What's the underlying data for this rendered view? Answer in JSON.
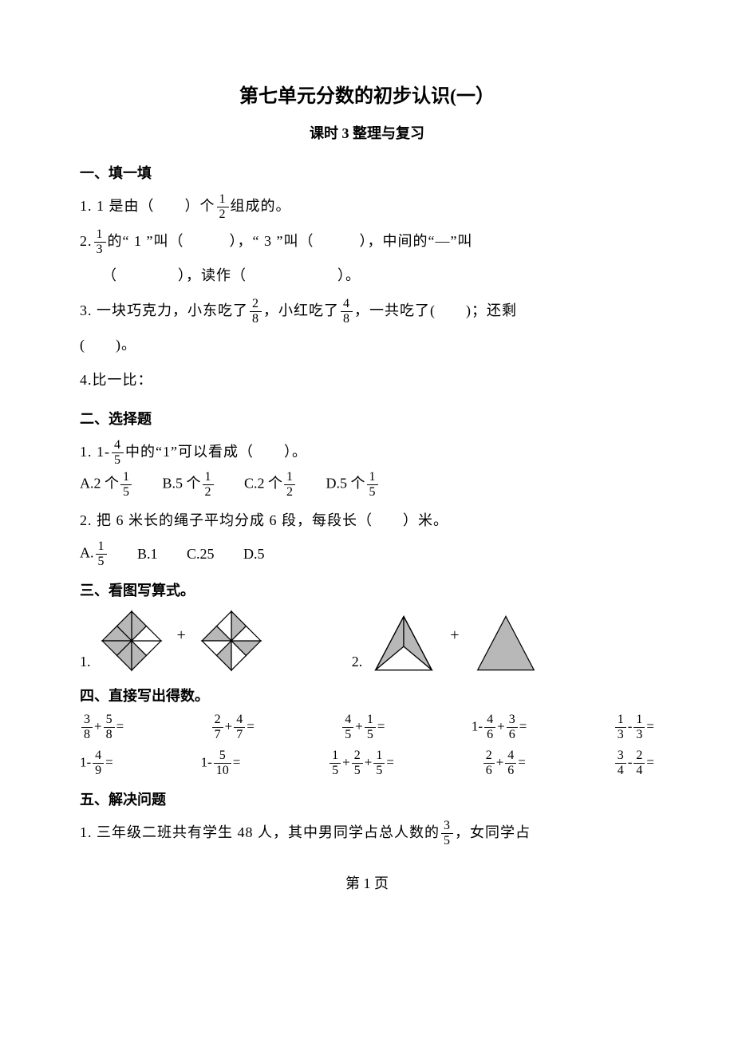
{
  "title": "第七单元分数的初步认识(一）",
  "subtitle": "课时 3  整理与复习",
  "section1": {
    "heading": "一、填一填",
    "q1_prefix": "1.  1 是由（　　）个",
    "q1_frac": {
      "num": "1",
      "den": "2"
    },
    "q1_suffix": "组成的。",
    "q2_prefix": "2.",
    "q2_frac": {
      "num": "1",
      "den": "3"
    },
    "q2_mid": "的“ 1 ”叫（　　　），“ 3 ”叫（　　　），中间的“—”叫",
    "q2_line2": "（　　　　），读作（　　　　　　）。",
    "q3_prefix": "3. 一块巧克力，小东吃了",
    "q3_frac1": {
      "num": "2",
      "den": "8"
    },
    "q3_mid": "，小红吃了",
    "q3_frac2": {
      "num": "4",
      "den": "8"
    },
    "q3_suffix": "，一共吃了(　　)；还剩",
    "q3_line2": "(　　)。",
    "q4": "4.比一比："
  },
  "section2": {
    "heading": "二、选择题",
    "q1_prefix": "1. 1-",
    "q1_frac": {
      "num": "4",
      "den": "5"
    },
    "q1_suffix": "中的“1”可以看成（　　）。",
    "q1_opts": [
      {
        "label": "A.2 个",
        "frac": {
          "num": "1",
          "den": "5"
        }
      },
      {
        "label": "B.5 个",
        "frac": {
          "num": "1",
          "den": "2"
        }
      },
      {
        "label": "C.2 个",
        "frac": {
          "num": "1",
          "den": "2"
        }
      },
      {
        "label": "D.5 个",
        "frac": {
          "num": "1",
          "den": "5"
        }
      }
    ],
    "q2": "2. 把 6 米长的绳子平均分成 6 段，每段长（　　）米。",
    "q2_opts": {
      "A_label": "A.",
      "A_frac": {
        "num": "1",
        "den": "5"
      },
      "B": "B.1",
      "C": "C.25",
      "D": "D.5"
    }
  },
  "section3": {
    "heading": "三、看图写算式。",
    "label1": "1.",
    "label2": "2.",
    "plus": "+",
    "shape1": {
      "size": 80,
      "fill_shaded": "#b8b8b8",
      "fill_empty": "#ffffff",
      "stroke": "#000000",
      "shaded_tris_a": [
        0,
        1,
        2,
        3,
        4,
        5
      ],
      "shaded_tris_b": [
        0,
        2,
        4,
        6
      ]
    },
    "shape2": {
      "size": 80,
      "fill_shaded": "#b8b8b8",
      "fill_empty": "#ffffff",
      "stroke": "#000000"
    }
  },
  "section4": {
    "heading": "四、直接写出得数。",
    "row1": [
      {
        "parts": [
          {
            "f": {
              "n": "3",
              "d": "8"
            }
          },
          {
            "t": "+"
          },
          {
            "f": {
              "n": "5",
              "d": "8"
            }
          },
          {
            "t": "="
          }
        ]
      },
      {
        "parts": [
          {
            "f": {
              "n": "2",
              "d": "7"
            }
          },
          {
            "t": "+"
          },
          {
            "f": {
              "n": "4",
              "d": "7"
            }
          },
          {
            "t": "="
          }
        ]
      },
      {
        "parts": [
          {
            "f": {
              "n": "4",
              "d": "5"
            }
          },
          {
            "t": "+"
          },
          {
            "f": {
              "n": "1",
              "d": "5"
            }
          },
          {
            "t": "="
          }
        ]
      },
      {
        "parts": [
          {
            "t": "1-"
          },
          {
            "f": {
              "n": "4",
              "d": "6"
            }
          },
          {
            "t": "+"
          },
          {
            "f": {
              "n": "3",
              "d": "6"
            }
          },
          {
            "t": "="
          }
        ]
      },
      {
        "parts": [
          {
            "f": {
              "n": "1",
              "d": "3"
            }
          },
          {
            "t": "-"
          },
          {
            "f": {
              "n": "1",
              "d": "3"
            }
          },
          {
            "t": "="
          }
        ]
      }
    ],
    "row2": [
      {
        "parts": [
          {
            "t": "1-"
          },
          {
            "f": {
              "n": "4",
              "d": "9"
            }
          },
          {
            "t": "="
          }
        ]
      },
      {
        "parts": [
          {
            "t": "1-"
          },
          {
            "f": {
              "n": "5",
              "d": "10"
            }
          },
          {
            "t": "="
          }
        ]
      },
      {
        "parts": [
          {
            "f": {
              "n": "1",
              "d": "5"
            }
          },
          {
            "t": "+"
          },
          {
            "f": {
              "n": "2",
              "d": "5"
            }
          },
          {
            "t": "+"
          },
          {
            "f": {
              "n": "1",
              "d": "5"
            }
          },
          {
            "t": "="
          }
        ]
      },
      {
        "parts": [
          {
            "f": {
              "n": "2",
              "d": "6"
            }
          },
          {
            "t": "+"
          },
          {
            "f": {
              "n": "4",
              "d": "6"
            }
          },
          {
            "t": "="
          }
        ]
      },
      {
        "parts": [
          {
            "f": {
              "n": "3",
              "d": "4"
            }
          },
          {
            "t": "-"
          },
          {
            "f": {
              "n": "2",
              "d": "4"
            }
          },
          {
            "t": "="
          }
        ]
      }
    ]
  },
  "section5": {
    "heading": "五、解决问题",
    "q1_prefix": "1. 三年级二班共有学生 48 人，其中男同学占总人数的",
    "q1_frac": {
      "num": "3",
      "den": "5"
    },
    "q1_suffix": "，女同学占"
  },
  "footer": "第  1  页"
}
